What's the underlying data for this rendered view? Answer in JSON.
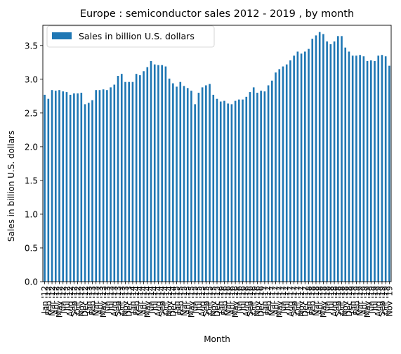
{
  "chart_data": {
    "type": "bar",
    "title": "Europe : semiconductor sales 2012 - 2019 , by month",
    "xlabel": "Month",
    "ylabel": "Sales in billion U.S. dollars",
    "ylim": [
      0,
      3.8
    ],
    "yticks": [
      0.0,
      0.5,
      1.0,
      1.5,
      2.0,
      2.5,
      3.0,
      3.5
    ],
    "ytick_labels": [
      "0.0",
      "0.5",
      "1.0",
      "1.5",
      "2.0",
      "2.5",
      "3.0",
      "3.5"
    ],
    "legend_position": "top-left",
    "bar_color": "#1f77b4",
    "series": [
      {
        "name": "Sales in billion U.S. dollars",
        "values": [
          2.77,
          2.71,
          2.84,
          2.83,
          2.84,
          2.82,
          2.81,
          2.77,
          2.79,
          2.79,
          2.8,
          2.63,
          2.65,
          2.69,
          2.84,
          2.84,
          2.85,
          2.84,
          2.88,
          2.92,
          3.05,
          3.08,
          2.96,
          2.96,
          2.96,
          3.08,
          3.06,
          3.12,
          3.18,
          3.27,
          3.22,
          3.21,
          3.21,
          3.19,
          3.01,
          2.94,
          2.89,
          2.96,
          2.9,
          2.87,
          2.83,
          2.63,
          2.8,
          2.88,
          2.91,
          2.93,
          2.77,
          2.71,
          2.67,
          2.68,
          2.64,
          2.63,
          2.68,
          2.7,
          2.7,
          2.74,
          2.81,
          2.88,
          2.8,
          2.83,
          2.82,
          2.91,
          2.98,
          3.1,
          3.15,
          3.19,
          3.22,
          3.28,
          3.35,
          3.41,
          3.38,
          3.41,
          3.45,
          3.6,
          3.65,
          3.7,
          3.67,
          3.56,
          3.52,
          3.56,
          3.64,
          3.64,
          3.47,
          3.41,
          3.35,
          3.35,
          3.36,
          3.34,
          3.27,
          3.28,
          3.27,
          3.35,
          3.36,
          3.34,
          3.2
        ]
      }
    ],
    "categories": [
      "Jan '12",
      "Feb '12",
      "Mar '12",
      "Apr '12",
      "May '12",
      "Jun '12",
      "Jul '12",
      "Aug '12",
      "Sep '12",
      "Oct '12",
      "Nov '12",
      "Dec '12",
      "Jan '13",
      "Feb '13",
      "Mar '13",
      "Apr '13",
      "May '13",
      "Jun '13",
      "Jul '13",
      "Aug '13",
      "Sep '13",
      "Oct '13",
      "Nov '13",
      "Dec '13",
      "Jan '14",
      "Feb '14",
      "Mar '14",
      "Apr '14",
      "May '14",
      "Jun '14",
      "Jul '14",
      "Aug '14",
      "Sep '14",
      "Oct '14",
      "Nov '14",
      "Dec '14",
      "Jan '15",
      "Feb '15",
      "Mar '15",
      "Apr '15",
      "May '15",
      "Jun '15",
      "Jul '15",
      "Aug '15",
      "Sep '15",
      "Oct '15",
      "Nov '15",
      "Dec '15",
      "Jan '16",
      "Feb '16",
      "Mar '16",
      "Apr '16",
      "May '16",
      "Jun '16",
      "Jul '16",
      "Aug '16",
      "Sep '16",
      "Oct '16",
      "Nov '16",
      "Dec '16",
      "Jan '17",
      "Feb '17",
      "Mar '17",
      "Apr '17",
      "May '17",
      "Jun '17",
      "Jul '17",
      "Aug '17",
      "Sep '17",
      "Oct '17",
      "Nov '17",
      "Dec '17",
      "Jan '18",
      "Feb '18",
      "Mar '18",
      "Apr '18",
      "May '18",
      "Jun '18",
      "Jul '18",
      "Aug '18",
      "Sep '18",
      "Oct '18",
      "Nov '18",
      "Dec '18",
      "Jan '19",
      "Feb '19",
      "Mar '19",
      "Apr '19",
      "May '19",
      "Jun '19",
      "Jul '19",
      "Aug '19",
      "Sep '19",
      "Oct '19",
      "Nov '19"
    ]
  }
}
